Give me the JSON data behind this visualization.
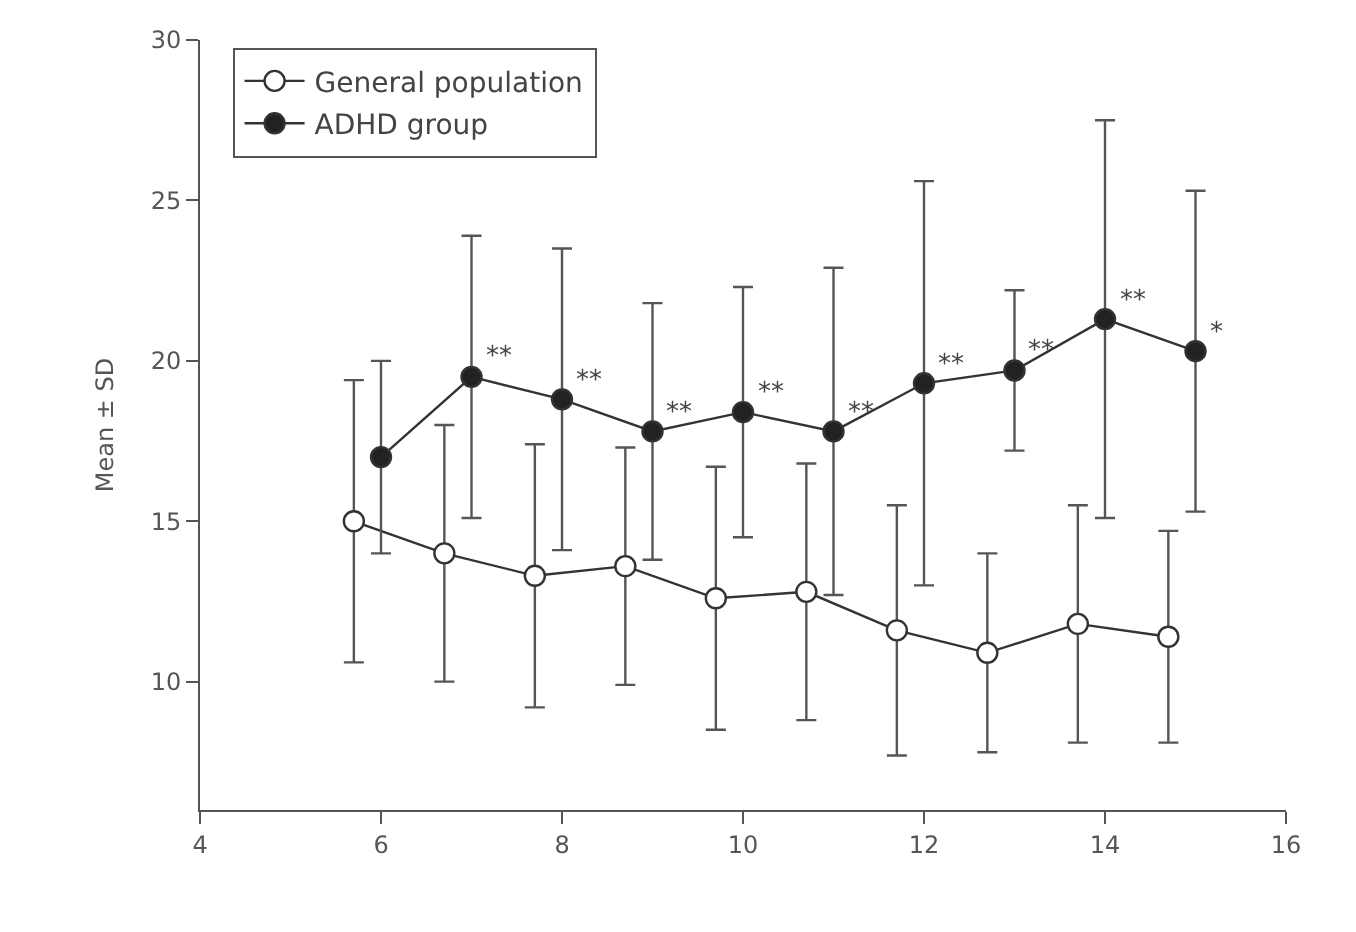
{
  "chart_data": {
    "type": "line",
    "ylabel": "Mean ± SD",
    "xlim": [
      4,
      16
    ],
    "xticks": [
      4,
      6,
      8,
      10,
      12,
      14,
      16
    ],
    "ylim": [
      6,
      30
    ],
    "yticks": [
      10,
      15,
      20,
      25,
      30
    ],
    "legend": "top left",
    "line_style": "solid",
    "series": [
      {
        "name": "General population",
        "color": "#ffffff",
        "marker": "circle",
        "x": [
          5.7,
          6.7,
          7.7,
          8.7,
          9.7,
          10.7,
          11.7,
          12.7,
          13.7,
          14.7
        ],
        "values": [
          15.0,
          14.0,
          13.3,
          13.6,
          12.6,
          12.8,
          11.6,
          10.9,
          11.8,
          11.4
        ],
        "errors": [
          4.4,
          4.0,
          4.1,
          3.7,
          4.1,
          4.0,
          3.9,
          3.1,
          3.7,
          3.3
        ]
      },
      {
        "name": "ADHD group",
        "color": "#222222",
        "marker": "circle",
        "x": [
          6,
          7,
          8,
          9,
          10,
          11,
          12,
          13,
          14,
          15
        ],
        "values": [
          17.0,
          19.5,
          18.8,
          17.8,
          18.4,
          17.8,
          19.3,
          19.7,
          21.3,
          20.3
        ],
        "errors": [
          3.0,
          4.4,
          4.7,
          4.0,
          3.9,
          5.1,
          6.3,
          2.5,
          6.2,
          5.0
        ]
      }
    ],
    "annotations": [
      {
        "text": "**",
        "x": 7,
        "y": 19.5
      },
      {
        "text": "**",
        "x": 8,
        "y": 18.8
      },
      {
        "text": "**",
        "x": 9,
        "y": 17.8
      },
      {
        "text": "**",
        "x": 10,
        "y": 18.4
      },
      {
        "text": "**",
        "x": 11,
        "y": 17.8
      },
      {
        "text": "**",
        "x": 12,
        "y": 19.3
      },
      {
        "text": "**",
        "x": 13,
        "y": 19.7
      },
      {
        "text": "**",
        "x": 14,
        "y": 21.3
      },
      {
        "text": "*",
        "x": 15,
        "y": 20.3
      }
    ]
  }
}
